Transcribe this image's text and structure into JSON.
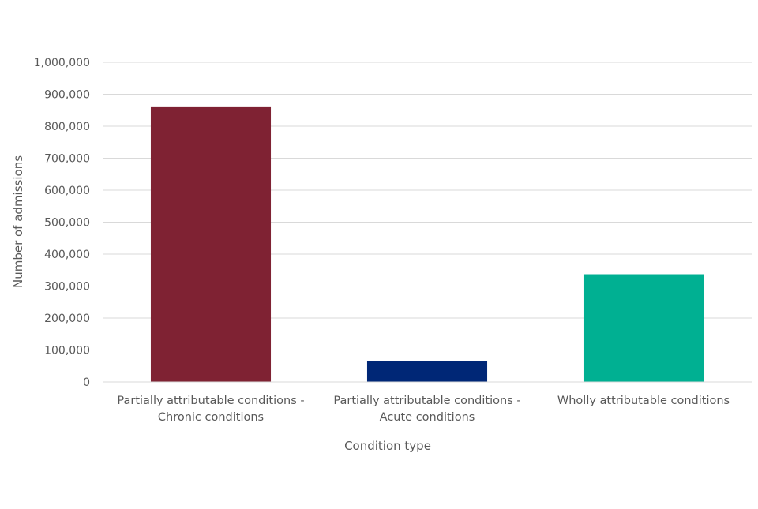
{
  "chart_data": {
    "type": "bar",
    "title": "",
    "xlabel": "Condition type",
    "ylabel": "Number of admissions",
    "categories": [
      [
        "Partially attributable conditions -",
        "Chronic conditions"
      ],
      [
        "Partially attributable conditions -",
        "Acute conditions"
      ],
      [
        "Wholly attributable conditions"
      ]
    ],
    "values": [
      862000,
      66000,
      337000
    ],
    "bar_colors": [
      "#7f2233",
      "#002776",
      "#00b092"
    ],
    "ylim": [
      0,
      1000000
    ],
    "yticks": [
      0,
      100000,
      200000,
      300000,
      400000,
      500000,
      600000,
      700000,
      800000,
      900000,
      1000000
    ],
    "ytick_labels": [
      "0",
      "100,000",
      "200,000",
      "300,000",
      "400,000",
      "500,000",
      "600,000",
      "700,000",
      "800,000",
      "900,000",
      "1,000,000"
    ],
    "grid": true,
    "legend": "none"
  }
}
